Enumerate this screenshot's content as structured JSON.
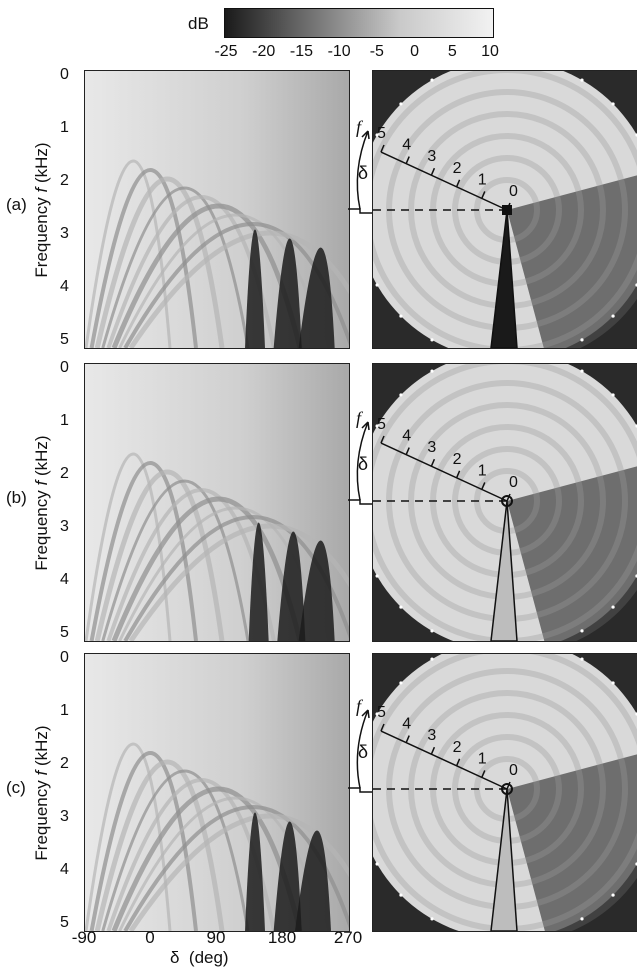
{
  "colorbar": {
    "unit": "dB",
    "ticks": [
      "-25",
      "-20",
      "-15",
      "-10",
      "-5",
      "0",
      "5",
      "10"
    ],
    "range": [
      -25,
      10
    ],
    "colors": {
      "low": "#1a1a1a",
      "high": "#f2f2f2"
    }
  },
  "axes": {
    "ylabel": "Frequency",
    "ylabel_var": "f",
    "ylabel_unit": "(kHz)",
    "yticks": [
      "0",
      "1",
      "2",
      "3",
      "4",
      "5"
    ],
    "xlabel": "δ  (deg)",
    "xticks": [
      "-90",
      "0",
      "90",
      "180",
      "270"
    ]
  },
  "panels": [
    {
      "tag": "(a)",
      "source_marker": "filled-square"
    },
    {
      "tag": "(b)",
      "source_marker": "open-circle"
    },
    {
      "tag": "(c)",
      "source_marker": "open-circle"
    }
  ],
  "polar_labels": {
    "f": "f",
    "delta": "δ",
    "radial_ticks": [
      "5",
      "4",
      "3",
      "2",
      "1",
      "0"
    ]
  },
  "chart_data": {
    "type": "heatmap",
    "title": "",
    "xlabel": "δ  (deg)",
    "ylabel": "Frequency f (kHz)",
    "xlim": [
      -90,
      270
    ],
    "ylim": [
      5,
      0
    ],
    "zlabel": "dB",
    "zlim": [
      -25,
      10
    ],
    "series": [
      {
        "name": "(a)",
        "null_delta_deg_at_5kHz": [
          150,
          200,
          245
        ],
        "peak_level_db": 10,
        "min_level_db": -25
      },
      {
        "name": "(b)",
        "null_delta_deg_at_5kHz": [
          155,
          205,
          245
        ],
        "peak_level_db": 10,
        "min_level_db": -25
      },
      {
        "name": "(c)",
        "null_delta_deg_at_5kHz": [
          150,
          200,
          240
        ],
        "peak_level_db": 10,
        "min_level_db": -25
      }
    ]
  }
}
